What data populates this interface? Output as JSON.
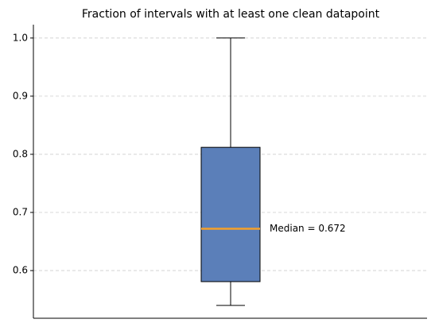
{
  "chart_data": {
    "type": "box",
    "title": "Fraction of intervals with at least one clean datapoint",
    "stats": {
      "whislo": 0.54,
      "q1": 0.581,
      "med": 0.672,
      "q3": 0.812,
      "whishi": 1.0
    },
    "median_label": "Median = 0.672",
    "color": "#5b7fb9",
    "median_color": "#f5a02a",
    "ylim": [
      0.518,
      1.023
    ],
    "yticks": [
      0.6,
      0.7,
      0.8,
      0.9,
      {
        "value": 1.0,
        "label": "1.0"
      }
    ],
    "grid": true
  }
}
